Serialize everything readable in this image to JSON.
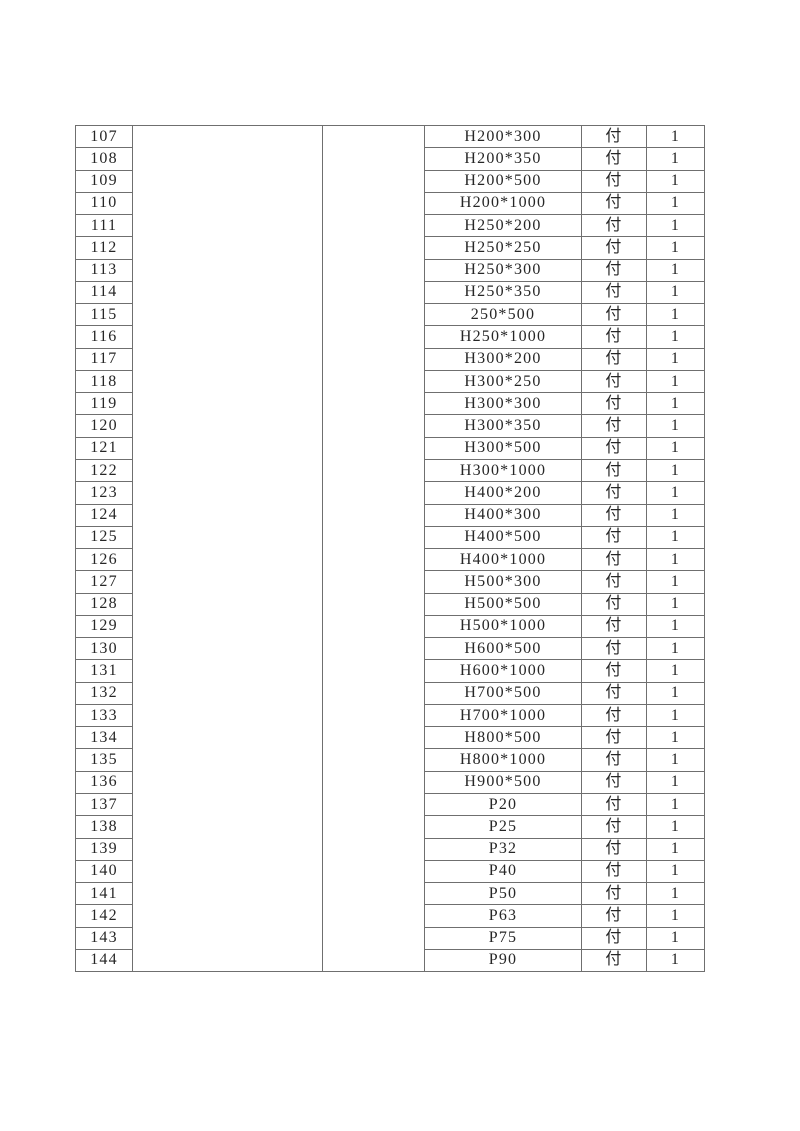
{
  "page": {
    "background_color": "#ffffff",
    "border_color": "#6f6f6f",
    "text_color": "#262626"
  },
  "table": {
    "rows": [
      {
        "no": "107",
        "spec": "H200*300",
        "unit": "付",
        "qty": "1"
      },
      {
        "no": "108",
        "spec": "H200*350",
        "unit": "付",
        "qty": "1"
      },
      {
        "no": "109",
        "spec": "H200*500",
        "unit": "付",
        "qty": "1"
      },
      {
        "no": "110",
        "spec": "H200*1000",
        "unit": "付",
        "qty": "1"
      },
      {
        "no": "111",
        "spec": "H250*200",
        "unit": "付",
        "qty": "1"
      },
      {
        "no": "112",
        "spec": "H250*250",
        "unit": "付",
        "qty": "1"
      },
      {
        "no": "113",
        "spec": "H250*300",
        "unit": "付",
        "qty": "1"
      },
      {
        "no": "114",
        "spec": "H250*350",
        "unit": "付",
        "qty": "1"
      },
      {
        "no": "115",
        "spec": "250*500",
        "unit": "付",
        "qty": "1"
      },
      {
        "no": "116",
        "spec": "H250*1000",
        "unit": "付",
        "qty": "1"
      },
      {
        "no": "117",
        "spec": "H300*200",
        "unit": "付",
        "qty": "1"
      },
      {
        "no": "118",
        "spec": "H300*250",
        "unit": "付",
        "qty": "1"
      },
      {
        "no": "119",
        "spec": "H300*300",
        "unit": "付",
        "qty": "1"
      },
      {
        "no": "120",
        "spec": "H300*350",
        "unit": "付",
        "qty": "1"
      },
      {
        "no": "121",
        "spec": "H300*500",
        "unit": "付",
        "qty": "1"
      },
      {
        "no": "122",
        "spec": "H300*1000",
        "unit": "付",
        "qty": "1"
      },
      {
        "no": "123",
        "spec": "H400*200",
        "unit": "付",
        "qty": "1"
      },
      {
        "no": "124",
        "spec": "H400*300",
        "unit": "付",
        "qty": "1"
      },
      {
        "no": "125",
        "spec": "H400*500",
        "unit": "付",
        "qty": "1"
      },
      {
        "no": "126",
        "spec": "H400*1000",
        "unit": "付",
        "qty": "1"
      },
      {
        "no": "127",
        "spec": "H500*300",
        "unit": "付",
        "qty": "1"
      },
      {
        "no": "128",
        "spec": "H500*500",
        "unit": "付",
        "qty": "1"
      },
      {
        "no": "129",
        "spec": "H500*1000",
        "unit": "付",
        "qty": "1"
      },
      {
        "no": "130",
        "spec": "H600*500",
        "unit": "付",
        "qty": "1"
      },
      {
        "no": "131",
        "spec": "H600*1000",
        "unit": "付",
        "qty": "1"
      },
      {
        "no": "132",
        "spec": "H700*500",
        "unit": "付",
        "qty": "1"
      },
      {
        "no": "133",
        "spec": "H700*1000",
        "unit": "付",
        "qty": "1"
      },
      {
        "no": "134",
        "spec": "H800*500",
        "unit": "付",
        "qty": "1"
      },
      {
        "no": "135",
        "spec": "H800*1000",
        "unit": "付",
        "qty": "1"
      },
      {
        "no": "136",
        "spec": "H900*500",
        "unit": "付",
        "qty": "1"
      },
      {
        "no": "137",
        "spec": "P20",
        "unit": "付",
        "qty": "1"
      },
      {
        "no": "138",
        "spec": "P25",
        "unit": "付",
        "qty": "1"
      },
      {
        "no": "139",
        "spec": "P32",
        "unit": "付",
        "qty": "1"
      },
      {
        "no": "140",
        "spec": "P40",
        "unit": "付",
        "qty": "1"
      },
      {
        "no": "141",
        "spec": "P50",
        "unit": "付",
        "qty": "1"
      },
      {
        "no": "142",
        "spec": "P63",
        "unit": "付",
        "qty": "1"
      },
      {
        "no": "143",
        "spec": "P75",
        "unit": "付",
        "qty": "1"
      },
      {
        "no": "144",
        "spec": "P90",
        "unit": "付",
        "qty": "1"
      }
    ]
  }
}
